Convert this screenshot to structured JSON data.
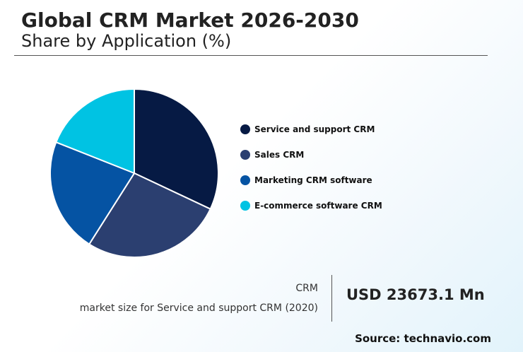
{
  "header": {
    "title": "Global CRM Market 2026-2030",
    "subtitle": "Share by Application (%)"
  },
  "chart_data": {
    "type": "pie",
    "categories": [
      "Service and support CRM",
      "Sales CRM",
      "Marketing CRM software",
      "E-commerce software CRM"
    ],
    "values": [
      32,
      27,
      22,
      19
    ],
    "colors": [
      "#061a44",
      "#2b3f70",
      "#0553a3",
      "#00c3e3"
    ],
    "legend_position": "right"
  },
  "metric": {
    "name": "CRM",
    "description": "market size for Service and support CRM (2020)",
    "value": "USD 23673.1 Mn"
  },
  "footer": {
    "source": "Source: technavio.com"
  }
}
